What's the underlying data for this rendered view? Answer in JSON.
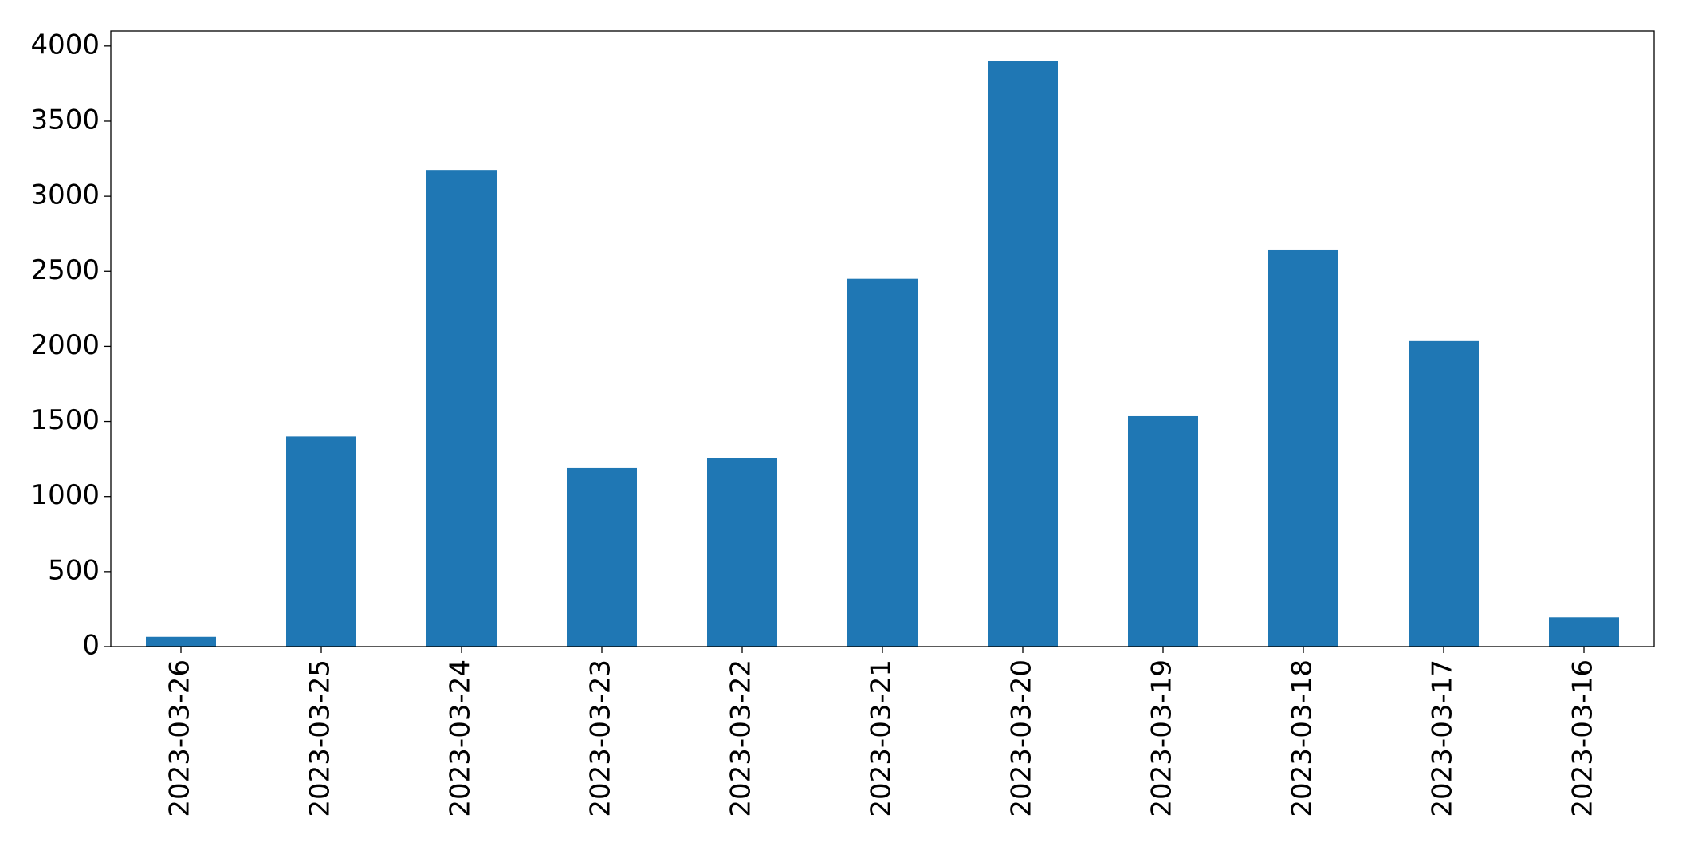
{
  "chart_data": {
    "type": "bar",
    "categories": [
      "2023-03-26",
      "2023-03-25",
      "2023-03-24",
      "2023-03-23",
      "2023-03-22",
      "2023-03-21",
      "2023-03-20",
      "2023-03-19",
      "2023-03-18",
      "2023-03-17",
      "2023-03-16"
    ],
    "values": [
      65,
      1400,
      3175,
      1190,
      1255,
      2450,
      3900,
      1535,
      2645,
      2035,
      195
    ],
    "color": "#1f77b4",
    "ylim": [
      0,
      4100
    ],
    "yticks": [
      0,
      500,
      1000,
      1500,
      2000,
      2500,
      3000,
      3500,
      4000
    ],
    "grid": false
  }
}
